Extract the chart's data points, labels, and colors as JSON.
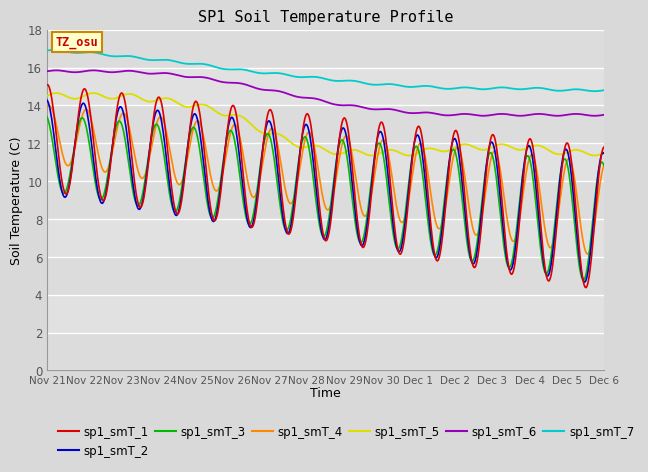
{
  "title": "SP1 Soil Temperature Profile",
  "xlabel": "Time",
  "ylabel": "Soil Temperature (C)",
  "ylim": [
    0,
    18
  ],
  "yticks": [
    0,
    2,
    4,
    6,
    8,
    10,
    12,
    14,
    16,
    18
  ],
  "xtick_labels": [
    "Nov 21",
    "Nov 22",
    "Nov 23",
    "Nov 24",
    "Nov 25",
    "Nov 26",
    "Nov 27",
    "Nov 28",
    "Nov 29",
    "Nov 30",
    "Dec 1",
    "Dec 2",
    "Dec 3",
    "Dec 4",
    "Dec 5",
    "Dec 6"
  ],
  "series_colors": {
    "sp1_smT_1": "#dd0000",
    "sp1_smT_2": "#0000cc",
    "sp1_smT_3": "#00bb00",
    "sp1_smT_4": "#ff8800",
    "sp1_smT_5": "#dddd00",
    "sp1_smT_6": "#9900bb",
    "sp1_smT_7": "#00cccc"
  },
  "legend_labels": [
    "sp1_smT_1",
    "sp1_smT_2",
    "sp1_smT_3",
    "sp1_smT_4",
    "sp1_smT_5",
    "sp1_smT_6",
    "sp1_smT_7"
  ],
  "annotation_text": "TZ_osu",
  "annotation_color": "#cc0000",
  "annotation_bg": "#ffffcc",
  "annotation_border": "#cc8800",
  "fig_bg": "#d9d9d9",
  "plot_bg": "#e8e8e8",
  "grid_color": "#ffffff",
  "n_points": 720,
  "duration_days": 15
}
